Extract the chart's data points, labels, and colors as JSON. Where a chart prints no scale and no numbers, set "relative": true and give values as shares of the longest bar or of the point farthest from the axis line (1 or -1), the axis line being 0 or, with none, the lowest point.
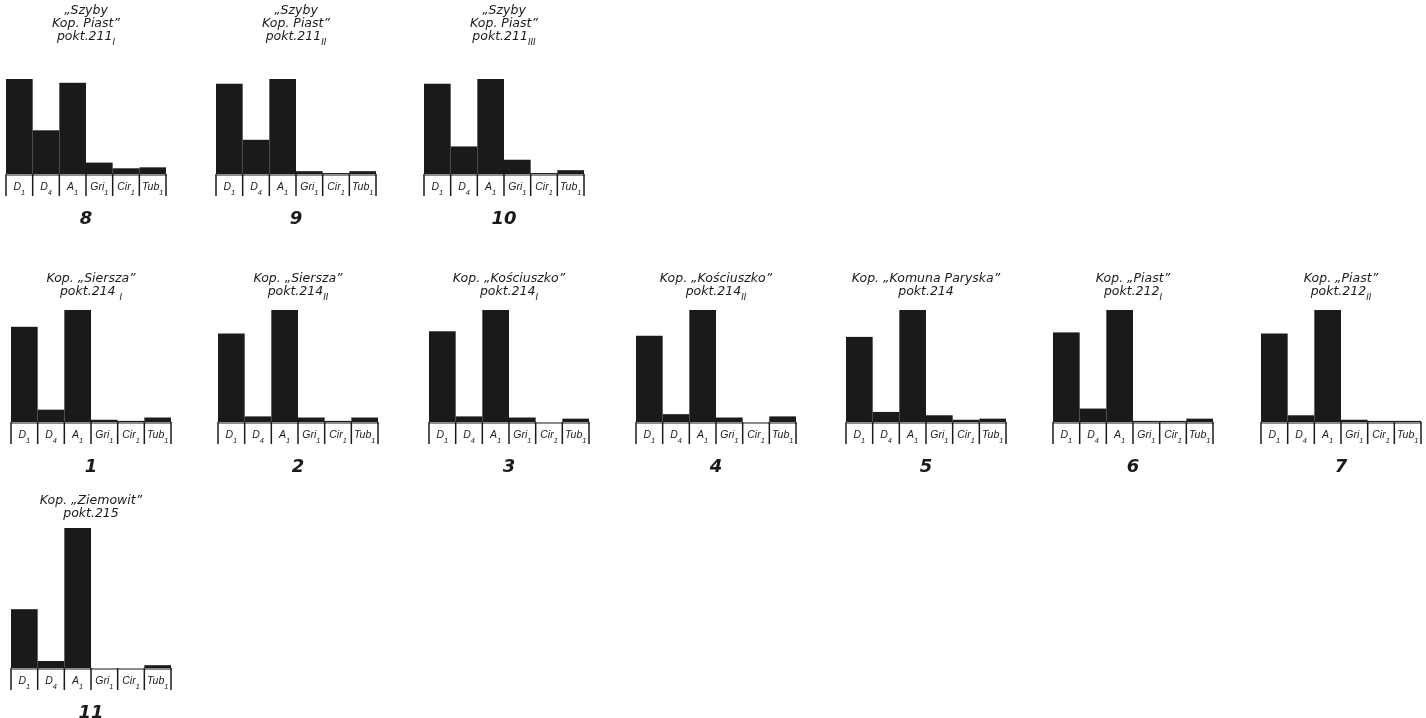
{
  "chart_data": [
    {
      "type": "bar",
      "relative": true,
      "title": "„Szyby\nKop. Piast”\npokt.211$_{I}$",
      "xlabel": "8",
      "categories": [
        "D$_{1}$",
        "D$_{4}$",
        "A$_{1}$",
        "Gri$_{1}$",
        "Cir$_{1}$",
        "Tub$_{1}$"
      ],
      "values": [
        1,
        0.46,
        0.96,
        0.12,
        0.06,
        0.07
      ],
      "color": "#1a1a1a"
    },
    {
      "type": "bar",
      "relative": true,
      "title": "„Szyby\nKop. Piast”\npokt.211$_{II}$",
      "xlabel": "9",
      "categories": [
        "D$_{1}$",
        "D$_{4}$",
        "A$_{1}$",
        "Gri$_{1}$",
        "Cir$_{1}$",
        "Tub$_{1}$"
      ],
      "values": [
        0.95,
        0.36,
        1,
        0.03,
        0.01,
        0.03
      ],
      "color": "#1a1a1a"
    },
    {
      "type": "bar",
      "relative": true,
      "title": "„Szyby\nKop. Piast”\npokt.211$_{III}$",
      "xlabel": "10",
      "categories": [
        "D$_{1}$",
        "D$_{4}$",
        "A$_{1}$",
        "Gri$_{1}$",
        "Cir$_{1}$",
        "Tub$_{1}$"
      ],
      "values": [
        0.95,
        0.29,
        1,
        0.15,
        0.01,
        0.04
      ],
      "color": "#1a1a1a"
    },
    {
      "type": "bar",
      "relative": true,
      "title": "Kop. „Siersza”\npokt.214 $_{I}$",
      "xlabel": "1",
      "categories": [
        "D$_{1}$",
        "D$_{4}$",
        "A$_{1}$",
        "Gri$_{1}$",
        "Cir$_{1}$",
        "Tub$_{1}$"
      ],
      "values": [
        0.85,
        0.11,
        1,
        0.02,
        0.01,
        0.04
      ],
      "color": "#1a1a1a"
    },
    {
      "type": "bar",
      "relative": true,
      "title": "Kop. „Siersza”\npokt.214$_{II}$",
      "xlabel": "2",
      "categories": [
        "D$_{1}$",
        "D$_{4}$",
        "A$_{1}$",
        "Gri$_{1}$",
        "Cir$_{1}$",
        "Tub$_{1}$"
      ],
      "values": [
        0.79,
        0.05,
        1,
        0.04,
        0.01,
        0.04
      ],
      "color": "#1a1a1a"
    },
    {
      "type": "bar",
      "relative": true,
      "title": "Kop. „Kościuszko”\npokt.214$_{I}$",
      "xlabel": "3",
      "categories": [
        "D$_{1}$",
        "D$_{4}$",
        "A$_{1}$",
        "Gri$_{1}$",
        "Cir$_{1}$",
        "Tub$_{1}$"
      ],
      "values": [
        0.81,
        0.05,
        1,
        0.04,
        0,
        0.03
      ],
      "color": "#1a1a1a"
    },
    {
      "type": "bar",
      "relative": true,
      "title": "Kop. „Kościuszko”\npokt.214$_{II}$",
      "xlabel": "4",
      "categories": [
        "D$_{1}$",
        "D$_{4}$",
        "A$_{1}$",
        "Gri$_{1}$",
        "Cir$_{1}$",
        "Tub$_{1}$"
      ],
      "values": [
        0.77,
        0.07,
        1,
        0.04,
        0,
        0.05
      ],
      "color": "#1a1a1a"
    },
    {
      "type": "bar",
      "relative": true,
      "title": "Kop. „Komuna Paryska”\npokt.214",
      "xlabel": "5",
      "categories": [
        "D$_{1}$",
        "D$_{4}$",
        "A$_{1}$",
        "Gri$_{1}$",
        "Cir$_{1}$",
        "Tub$_{1}$"
      ],
      "values": [
        0.76,
        0.09,
        1,
        0.06,
        0.02,
        0.03
      ],
      "color": "#1a1a1a"
    },
    {
      "type": "bar",
      "relative": true,
      "title": "Kop. „Piast”\npokt.212$_{I}$",
      "xlabel": "6",
      "categories": [
        "D$_{1}$",
        "D$_{4}$",
        "A$_{1}$",
        "Gri$_{1}$",
        "Cir$_{1}$",
        "Tub$_{1}$"
      ],
      "values": [
        0.8,
        0.12,
        1,
        0.01,
        0.01,
        0.03
      ],
      "color": "#1a1a1a"
    },
    {
      "type": "bar",
      "relative": true,
      "title": "Kop. „Piast”\npokt.212$_{II}$",
      "xlabel": "7",
      "categories": [
        "D$_{1}$",
        "D$_{4}$",
        "A$_{1}$",
        "Gri$_{1}$",
        "Cir$_{1}$",
        "Tub$_{1}$"
      ],
      "values": [
        0.79,
        0.06,
        1,
        0.02,
        0.01,
        0.01
      ],
      "color": "#1a1a1a"
    },
    {
      "type": "bar",
      "relative": true,
      "title": "Kop. „Ziemowit”\npokt.215",
      "xlabel": "11",
      "categories": [
        "D$_{1}$",
        "D$_{4}$",
        "A$_{1}$",
        "Gri$_{1}$",
        "Cir$_{1}$",
        "Tub$_{1}$"
      ],
      "values": [
        0.42,
        0.05,
        1,
        0,
        0,
        0.02
      ],
      "color": "#1a1a1a"
    }
  ]
}
